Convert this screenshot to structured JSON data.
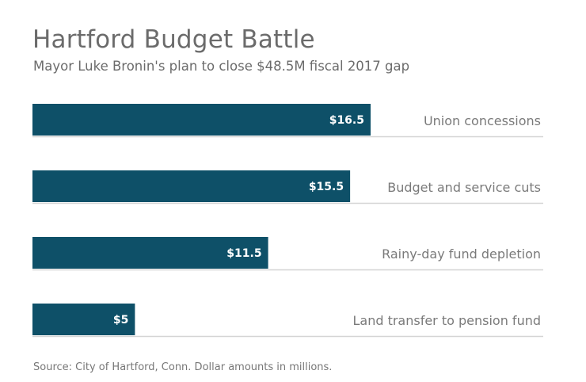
{
  "title": "Hartford Budget Battle",
  "subtitle": "Mayor Luke Bronin's plan to close $48.5M fiscal 2017 gap",
  "source": "Source: City of Hartford, Conn. Dollar amounts in millions.",
  "colors": {
    "bar": "#0e5068",
    "bar_label": "#ffffff",
    "category_label": "#7a7a7a",
    "baseline": "#d4d4d4"
  },
  "chart_data": {
    "type": "bar",
    "orientation": "horizontal",
    "categories": [
      "Union concessions",
      "Budget and service cuts",
      "Rainy-day fund depletion",
      "Land transfer to pension fund"
    ],
    "values": [
      16.5,
      15.5,
      11.5,
      5
    ],
    "data_labels": [
      "$16.5",
      "$15.5",
      "$11.5",
      "$5"
    ],
    "title": "Hartford Budget Battle",
    "subtitle": "Mayor Luke Bronin's plan to close $48.5M fiscal 2017 gap",
    "xlabel": "",
    "ylabel": "",
    "xlim": [
      0,
      16.5
    ],
    "grid": false,
    "legend": "none"
  }
}
